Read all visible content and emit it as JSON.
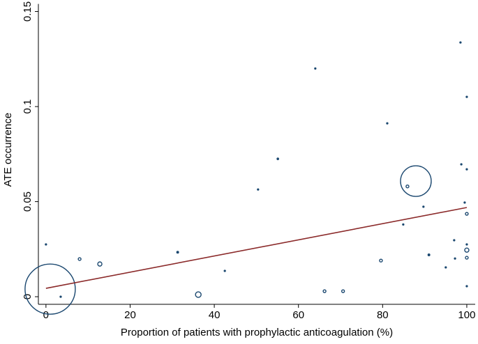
{
  "chart_data": {
    "type": "scatter",
    "x_label": "Proportion of patients with prophylactic anticoagulation (%)",
    "y_label": "ATE occurrence",
    "color": "#1a476f",
    "x": [
      0,
      1,
      3.5,
      8,
      12.8,
      31.3,
      36.2,
      42.5,
      50.4,
      55.1,
      64,
      66.2,
      70.6,
      79.6,
      81.1,
      87.9,
      85.9,
      84.9,
      89.7,
      91,
      95,
      97,
      97.2,
      98.5,
      98.7,
      99.5,
      100,
      100,
      100,
      100,
      100,
      100,
      100
    ],
    "y": [
      0.0275,
      0.004,
      0,
      0.0198,
      0.0172,
      0.0234,
      0.0011,
      0.0136,
      0.0564,
      0.0725,
      0.12,
      0.0029,
      0.0029,
      0.019,
      0.0912,
      0.0608,
      0.058,
      0.038,
      0.0473,
      0.022,
      0.0154,
      0.0297,
      0.0201,
      0.1337,
      0.0696,
      0.0495,
      0.1051,
      0.067,
      0.0436,
      0.0275,
      0.0245,
      0.0205,
      0.0055
    ],
    "sizes": [
      1.5,
      1296,
      1.5,
      4,
      9,
      2.5,
      16,
      1.5,
      1.5,
      2,
      1.5,
      4,
      4,
      4,
      1.5,
      484,
      4,
      1.5,
      1.5,
      2.5,
      1.5,
      1.5,
      1.5,
      1.5,
      1.5,
      1.5,
      1.5,
      1.5,
      4,
      1.5,
      9,
      4,
      1.5
    ],
    "fit_line": {
      "color": "#8b2a2a",
      "x": [
        0,
        100
      ],
      "y": [
        0.0044,
        0.0469
      ]
    },
    "xlim": [
      -1.8,
      102
    ],
    "ylim": [
      -0.004,
      0.154
    ],
    "xticks": [
      0,
      20,
      40,
      60,
      80,
      100
    ],
    "yticks": [
      0,
      0.05,
      0.1,
      0.15
    ]
  }
}
